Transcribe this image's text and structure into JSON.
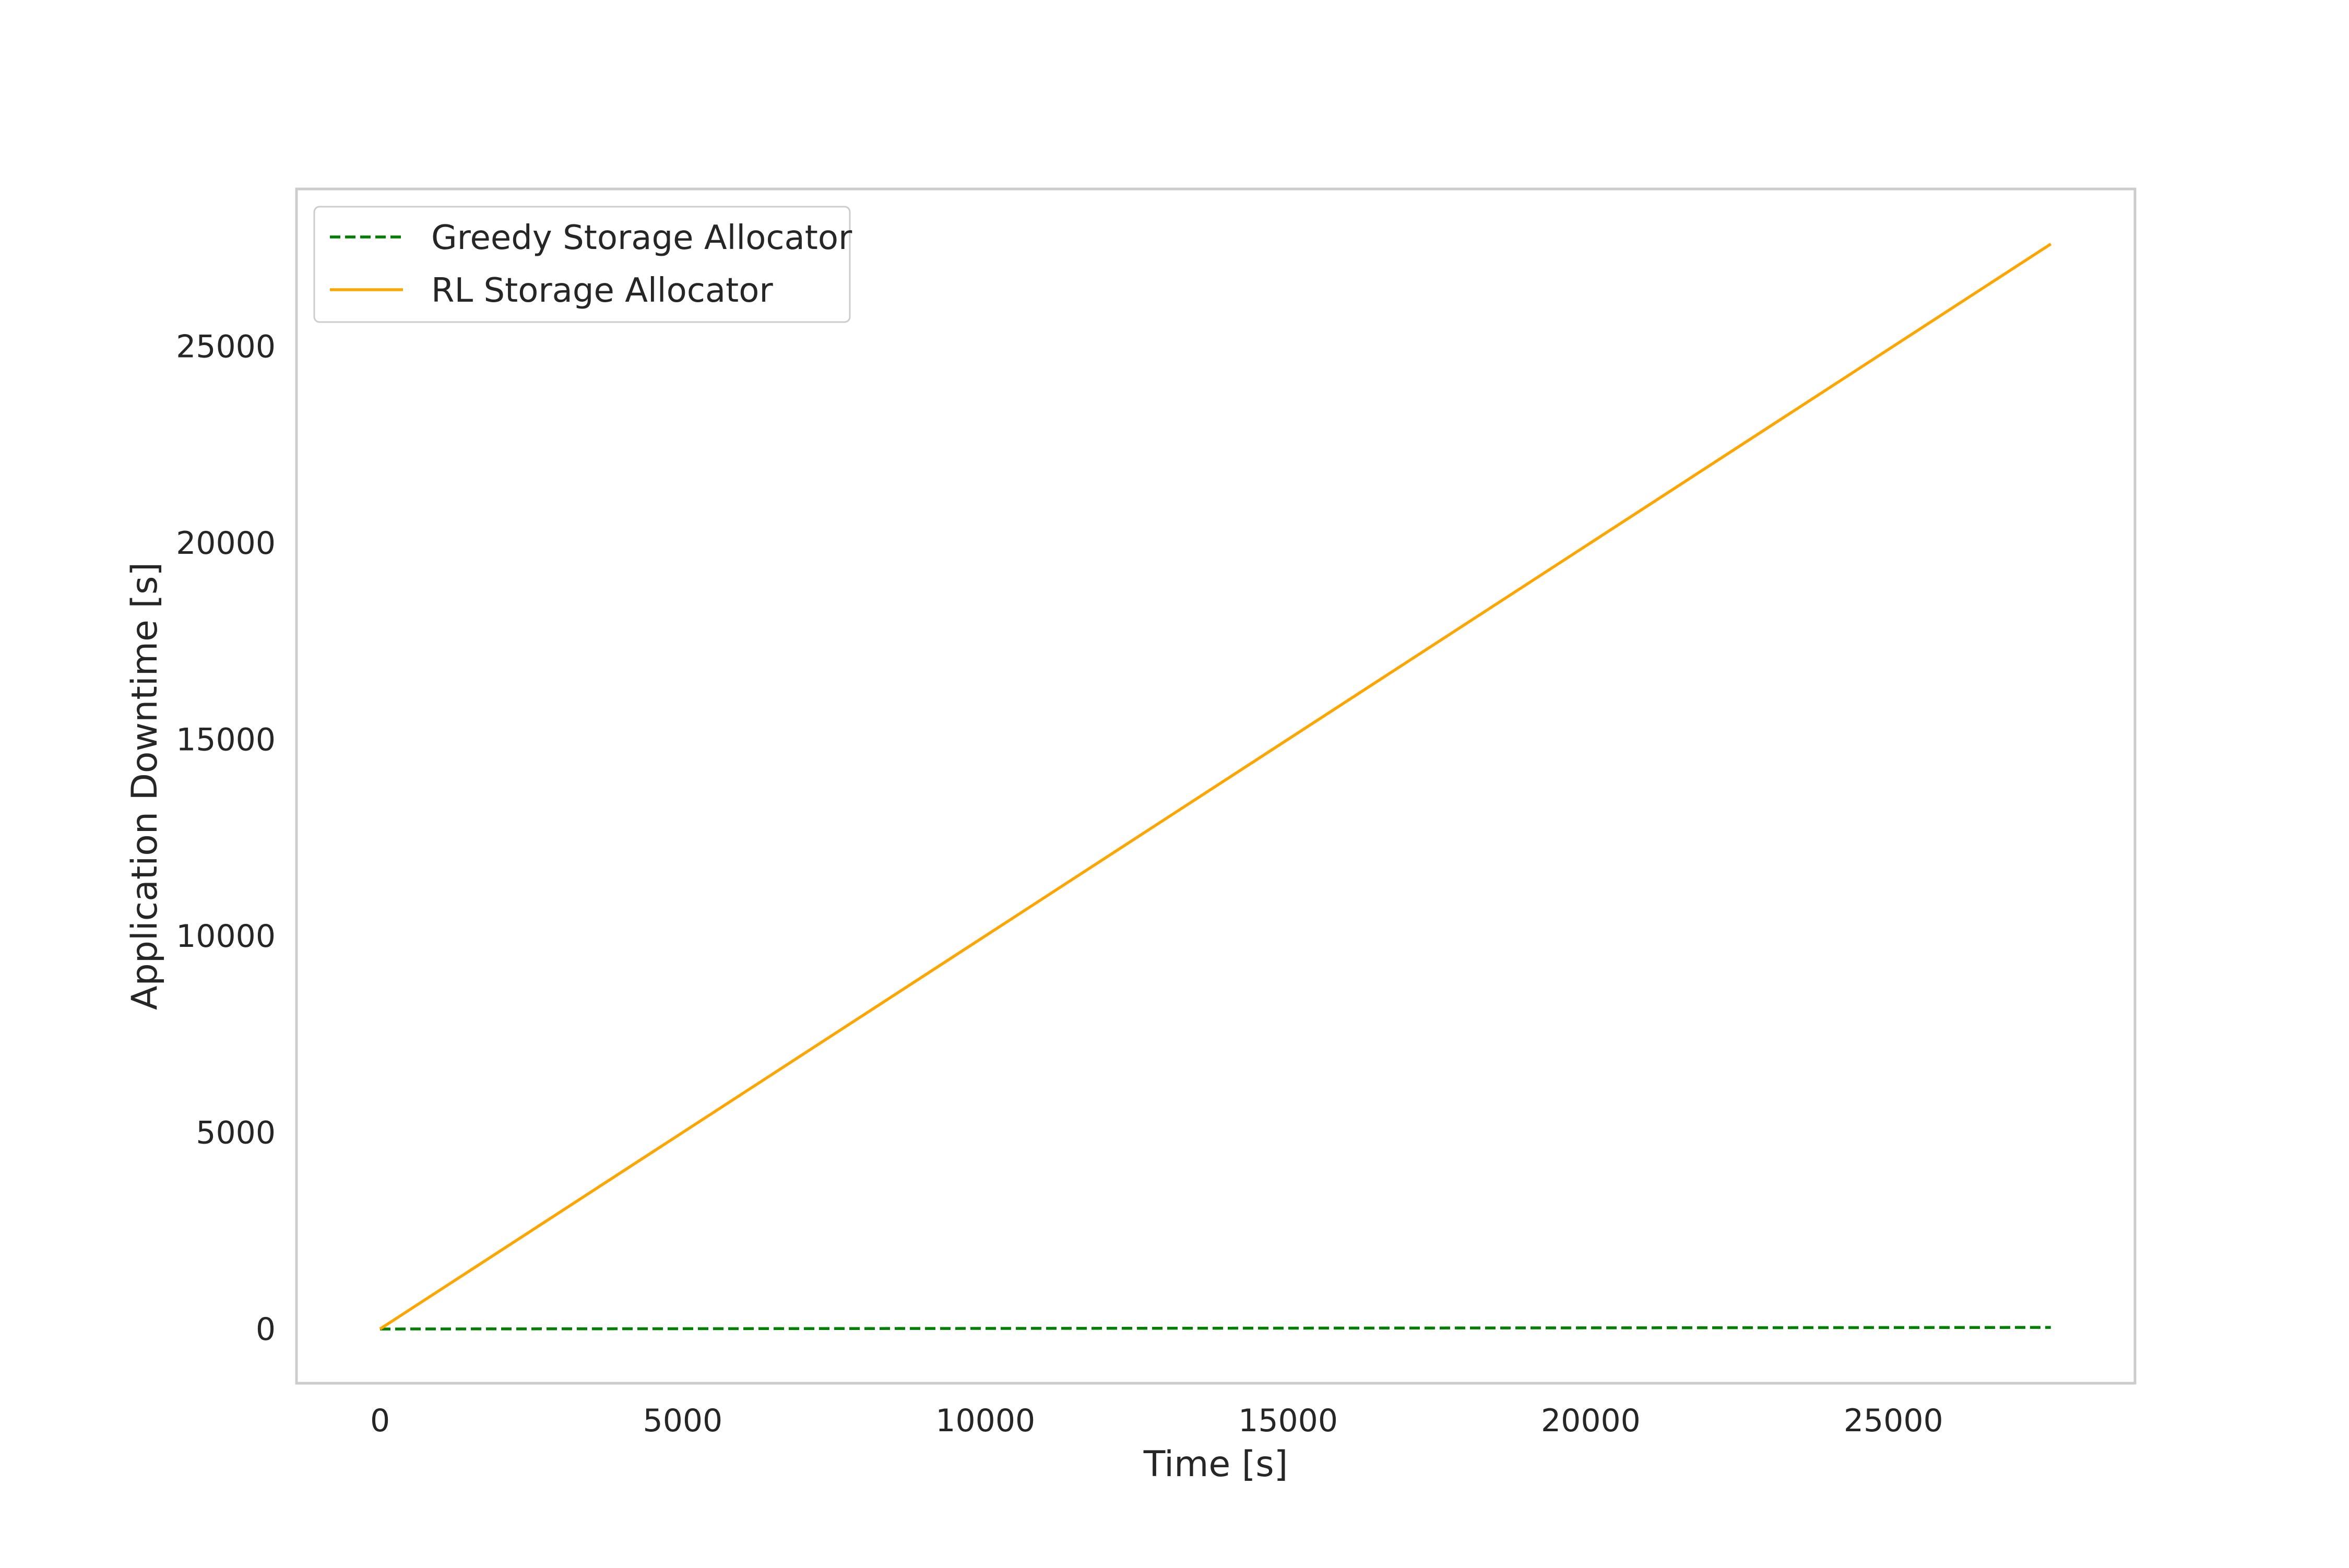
{
  "chart_data": {
    "type": "line",
    "title": "",
    "xlabel": "Time [s]",
    "ylabel": "Application Downtime [s]",
    "xlim": [
      -1380,
      28990
    ],
    "ylim": [
      -1380,
      29000
    ],
    "xticks": [
      0,
      5000,
      10000,
      15000,
      20000,
      25000
    ],
    "yticks": [
      0,
      5000,
      10000,
      15000,
      20000,
      25000
    ],
    "xtick_labels": [
      "0",
      "5000",
      "10000",
      "15000",
      "20000",
      "25000"
    ],
    "ytick_labels": [
      "0",
      "5000",
      "10000",
      "15000",
      "20000",
      "25000"
    ],
    "grid": false,
    "legend_position": "top-left",
    "series": [
      {
        "name": "Greedy Storage Allocator",
        "color": "#008000",
        "line_style": "dashed",
        "x": [
          0,
          27600
        ],
        "y": [
          0,
          40
        ]
      },
      {
        "name": "RL Storage Allocator",
        "color": "#ffa500",
        "line_style": "solid",
        "x": [
          0,
          27600
        ],
        "y": [
          0,
          27600
        ]
      }
    ]
  }
}
